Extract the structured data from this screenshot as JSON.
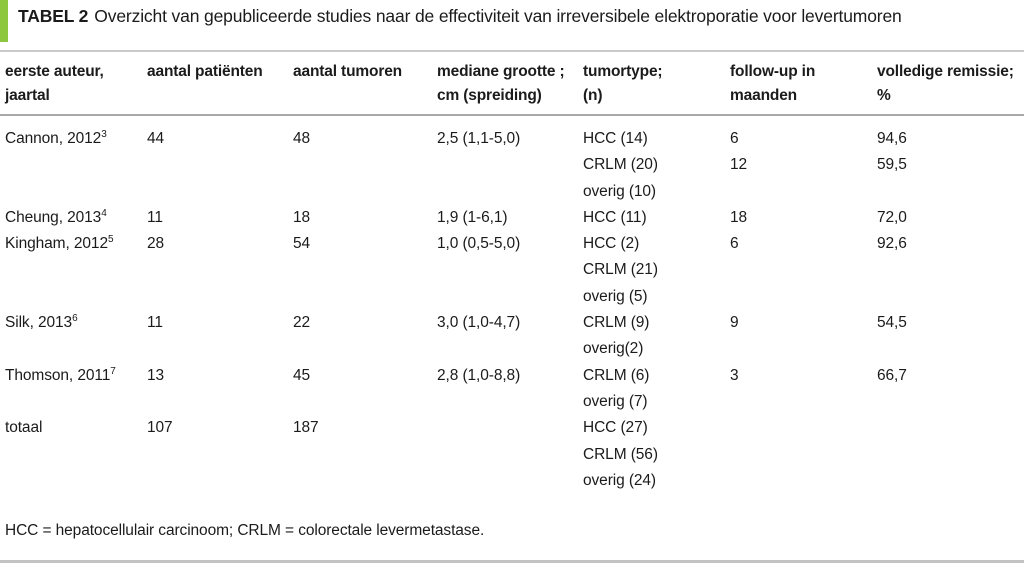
{
  "accent_color": "#8dc63f",
  "title": {
    "label": "TABEL 2",
    "text": "Overzicht van gepubliceerde studies naar de effectiviteit van irreversibele elektroporatie voor levertumoren"
  },
  "table": {
    "columns": [
      {
        "id": "author",
        "lines": [
          "eerste auteur,",
          "jaartal"
        ]
      },
      {
        "id": "patients",
        "lines": [
          "aantal patiënten"
        ]
      },
      {
        "id": "tumors",
        "lines": [
          "aantal tumoren"
        ]
      },
      {
        "id": "size",
        "lines": [
          "mediane grootte ;",
          "cm (spreiding)"
        ]
      },
      {
        "id": "tumortype",
        "lines": [
          "tumortype;",
          "(n)"
        ]
      },
      {
        "id": "followup",
        "lines": [
          "follow-up in",
          "maanden"
        ]
      },
      {
        "id": "remission",
        "lines": [
          "volledige remissie;",
          "%"
        ]
      }
    ],
    "rows": [
      {
        "author": "Cannon, 2012",
        "ref": "3",
        "patients": "44",
        "tumors": "48",
        "size": "2,5 (1,1-5,0)",
        "types": [
          "HCC (14)",
          "CRLM (20)",
          "overig (10)"
        ],
        "followup": [
          "6",
          "12"
        ],
        "remission": [
          "94,6",
          "59,5"
        ]
      },
      {
        "author": "Cheung, 2013",
        "ref": "4",
        "patients": "11",
        "tumors": "18",
        "size": "1,9 (1-6,1)",
        "types": [
          "HCC (11)"
        ],
        "followup": [
          "18"
        ],
        "remission": [
          "72,0"
        ]
      },
      {
        "author": "Kingham, 2012",
        "ref": "5",
        "patients": "28",
        "tumors": "54",
        "size": "1,0 (0,5-5,0)",
        "types": [
          "HCC (2)",
          "CRLM (21)",
          "overig (5)"
        ],
        "followup": [
          "6"
        ],
        "remission": [
          "92,6"
        ]
      },
      {
        "author": "Silk, 2013",
        "ref": "6",
        "patients": "11",
        "tumors": "22",
        "size": "3,0 (1,0-4,7)",
        "types": [
          "CRLM (9)",
          "overig(2)"
        ],
        "followup": [
          "9"
        ],
        "remission": [
          "54,5"
        ]
      },
      {
        "author": "Thomson, 2011",
        "ref": "7",
        "patients": "13",
        "tumors": "45",
        "size": "2,8 (1,0-8,8)",
        "types": [
          "CRLM (6)",
          "overig (7)"
        ],
        "followup": [
          "3"
        ],
        "remission": [
          "66,7"
        ]
      },
      {
        "author": "totaal",
        "ref": "",
        "patients": "107",
        "tumors": "187",
        "size": "",
        "types": [
          "HCC (27)",
          "CRLM (56)",
          "overig (24)"
        ],
        "followup": [],
        "remission": []
      }
    ]
  },
  "footnote": "HCC = hepatocellulair carcinoom; CRLM = colorectale levermetastase."
}
